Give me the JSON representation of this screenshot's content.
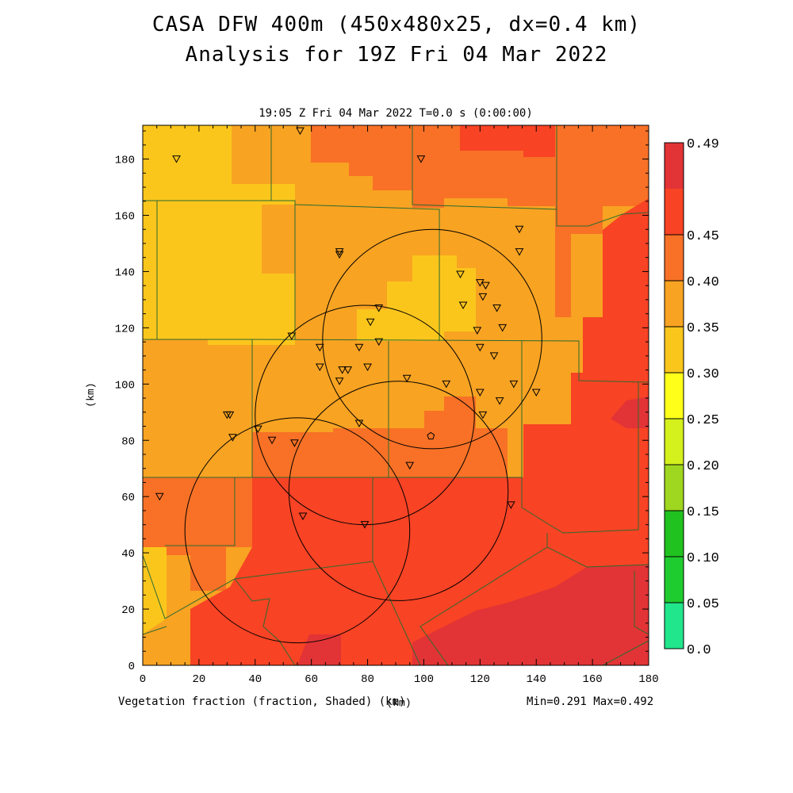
{
  "title_line1": "CASA DFW 400m (450x480x25, dx=0.4 km)",
  "title_line2": "Analysis for 19Z Fri 04 Mar 2022",
  "subtitle": "19:05 Z Fri 04 Mar 2022   T=0.0 s (0:00:00)",
  "footer_left": "Vegetation fraction (fraction, Shaded)  (km)",
  "footer_right": "Min=0.291 Max=0.492",
  "x_axis_label": "(km)",
  "y_axis_label": "(km)",
  "x_ticks": [
    "0",
    "20",
    "40",
    "60",
    "80",
    "100",
    "120",
    "140",
    "160",
    "180"
  ],
  "y_ticks": [
    "0",
    "20",
    "40",
    "60",
    "80",
    "100",
    "120",
    "140",
    "160",
    "180"
  ],
  "colorbar": {
    "labels": [
      "0.0",
      "0.05",
      "0.10",
      "0.15",
      "0.20",
      "0.25",
      "0.30",
      "0.35",
      "0.40",
      "0.45",
      "0.49"
    ],
    "colors": [
      "#22e68c",
      "#1fcc2f",
      "#20c21f",
      "#9fd61f",
      "#d4f01d",
      "#ffff1a",
      "#fbc61c",
      "#f8a322",
      "#f87126",
      "#f84324",
      "#e23436"
    ]
  },
  "shading_colors": {
    "light": "#fbc61c",
    "medium": "#f8a322",
    "orange": "#f87126",
    "red": "#f84324",
    "dark": "#e23436"
  },
  "boundary_color": "#2e6a2e",
  "radar_rings_km": [
    {
      "cx": 103,
      "cy": 116,
      "r": 39
    },
    {
      "cx": 79,
      "cy": 89,
      "r": 39
    },
    {
      "cx": 91,
      "cy": 62,
      "r": 39
    },
    {
      "cx": 55,
      "cy": 48,
      "r": 40
    }
  ],
  "radar_site_km": {
    "x": 102.5,
    "y": 81.5
  },
  "station_markers_km": [
    [
      12,
      180
    ],
    [
      56,
      190
    ],
    [
      99,
      180
    ],
    [
      134,
      155
    ],
    [
      134,
      147
    ],
    [
      70,
      147
    ],
    [
      70,
      146
    ],
    [
      113,
      139
    ],
    [
      120,
      136
    ],
    [
      122,
      135
    ],
    [
      121,
      131
    ],
    [
      114,
      128
    ],
    [
      126,
      127
    ],
    [
      84,
      127
    ],
    [
      81,
      122
    ],
    [
      128,
      120
    ],
    [
      119,
      119
    ],
    [
      53,
      117
    ],
    [
      84,
      115
    ],
    [
      77,
      113
    ],
    [
      63,
      113
    ],
    [
      120,
      113
    ],
    [
      125,
      110
    ],
    [
      63,
      106
    ],
    [
      71,
      105
    ],
    [
      73,
      105
    ],
    [
      80,
      106
    ],
    [
      94,
      102
    ],
    [
      70,
      101
    ],
    [
      108,
      100
    ],
    [
      132,
      100
    ],
    [
      140,
      97
    ],
    [
      120,
      97
    ],
    [
      127,
      94
    ],
    [
      30,
      89
    ],
    [
      31,
      89
    ],
    [
      121,
      89
    ],
    [
      77,
      86
    ],
    [
      41,
      84
    ],
    [
      32,
      81
    ],
    [
      46,
      80
    ],
    [
      54,
      79
    ],
    [
      95,
      71
    ],
    [
      6,
      60
    ],
    [
      131,
      57
    ],
    [
      57,
      53
    ],
    [
      79,
      50
    ]
  ]
}
